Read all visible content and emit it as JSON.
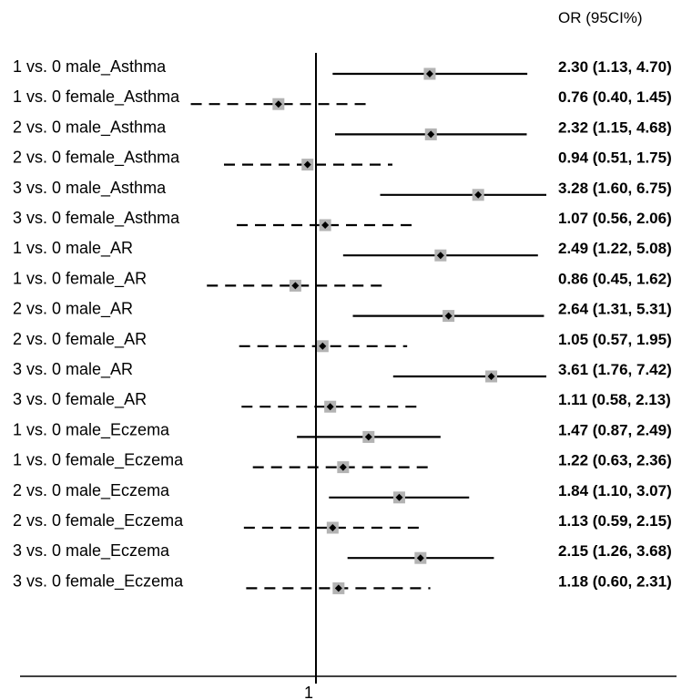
{
  "chart_data": {
    "type": "forest",
    "header": "OR (95CI%)",
    "x_scale": "log",
    "reference_value": 1,
    "tick_labels": [
      "1"
    ],
    "rows": [
      {
        "label": "1 vs. 0 male_Asthma",
        "or": 2.3,
        "lo": 1.13,
        "hi": 4.7,
        "text": "2.30 (1.13, 4.70)",
        "style": "solid"
      },
      {
        "label": "1 vs. 0 female_Asthma",
        "or": 0.76,
        "lo": 0.4,
        "hi": 1.45,
        "text": "0.76 (0.40, 1.45)",
        "style": "dashed"
      },
      {
        "label": "2 vs. 0 male_Asthma",
        "or": 2.32,
        "lo": 1.15,
        "hi": 4.68,
        "text": "2.32 (1.15, 4.68)",
        "style": "solid"
      },
      {
        "label": "2 vs. 0 female_Asthma",
        "or": 0.94,
        "lo": 0.51,
        "hi": 1.75,
        "text": "0.94 (0.51, 1.75)",
        "style": "dashed"
      },
      {
        "label": "3 vs. 0 male_Asthma",
        "or": 3.28,
        "lo": 1.6,
        "hi": 6.75,
        "text": "3.28 (1.60, 6.75)",
        "style": "solid"
      },
      {
        "label": "3 vs. 0 female_Asthma",
        "or": 1.07,
        "lo": 0.56,
        "hi": 2.06,
        "text": "1.07 (0.56, 2.06)",
        "style": "dashed"
      },
      {
        "label": "1 vs. 0 male_AR",
        "or": 2.49,
        "lo": 1.22,
        "hi": 5.08,
        "text": "2.49 (1.22, 5.08)",
        "style": "solid"
      },
      {
        "label": "1 vs. 0 female_AR",
        "or": 0.86,
        "lo": 0.45,
        "hi": 1.62,
        "text": "0.86 (0.45, 1.62)",
        "style": "dashed"
      },
      {
        "label": "2 vs. 0 male_AR",
        "or": 2.64,
        "lo": 1.31,
        "hi": 5.31,
        "text": "2.64 (1.31, 5.31)",
        "style": "solid"
      },
      {
        "label": "2 vs. 0 female_AR",
        "or": 1.05,
        "lo": 0.57,
        "hi": 1.95,
        "text": "1.05 (0.57, 1.95)",
        "style": "dashed"
      },
      {
        "label": "3 vs. 0 male_AR",
        "or": 3.61,
        "lo": 1.76,
        "hi": 7.42,
        "text": "3.61 (1.76, 7.42)",
        "style": "solid"
      },
      {
        "label": "3 vs. 0 female_AR",
        "or": 1.11,
        "lo": 0.58,
        "hi": 2.13,
        "text": "1.11 (0.58, 2.13)",
        "style": "dashed"
      },
      {
        "label": "1 vs. 0 male_Eczema",
        "or": 1.47,
        "lo": 0.87,
        "hi": 2.49,
        "text": "1.47 (0.87, 2.49)",
        "style": "solid"
      },
      {
        "label": "1 vs. 0 female_Eczema",
        "or": 1.22,
        "lo": 0.63,
        "hi": 2.36,
        "text": "1.22 (0.63, 2.36)",
        "style": "dashed"
      },
      {
        "label": "2 vs. 0 male_Eczema",
        "or": 1.84,
        "lo": 1.1,
        "hi": 3.07,
        "text": "1.84 (1.10, 3.07)",
        "style": "solid"
      },
      {
        "label": "2 vs. 0 female_Eczema",
        "or": 1.13,
        "lo": 0.59,
        "hi": 2.15,
        "text": "1.13 (0.59, 2.15)",
        "style": "dashed"
      },
      {
        "label": "3 vs. 0 male_Eczema",
        "or": 2.15,
        "lo": 1.26,
        "hi": 3.68,
        "text": "2.15 (1.26, 3.68)",
        "style": "solid"
      },
      {
        "label": "3 vs. 0 female_Eczema",
        "or": 1.18,
        "lo": 0.6,
        "hi": 2.31,
        "text": "1.18 (0.60, 2.31)",
        "style": "dashed"
      }
    ],
    "colors": {
      "line": "#000000",
      "marker": "#000000",
      "marker_box": "#b3b3b3"
    }
  }
}
